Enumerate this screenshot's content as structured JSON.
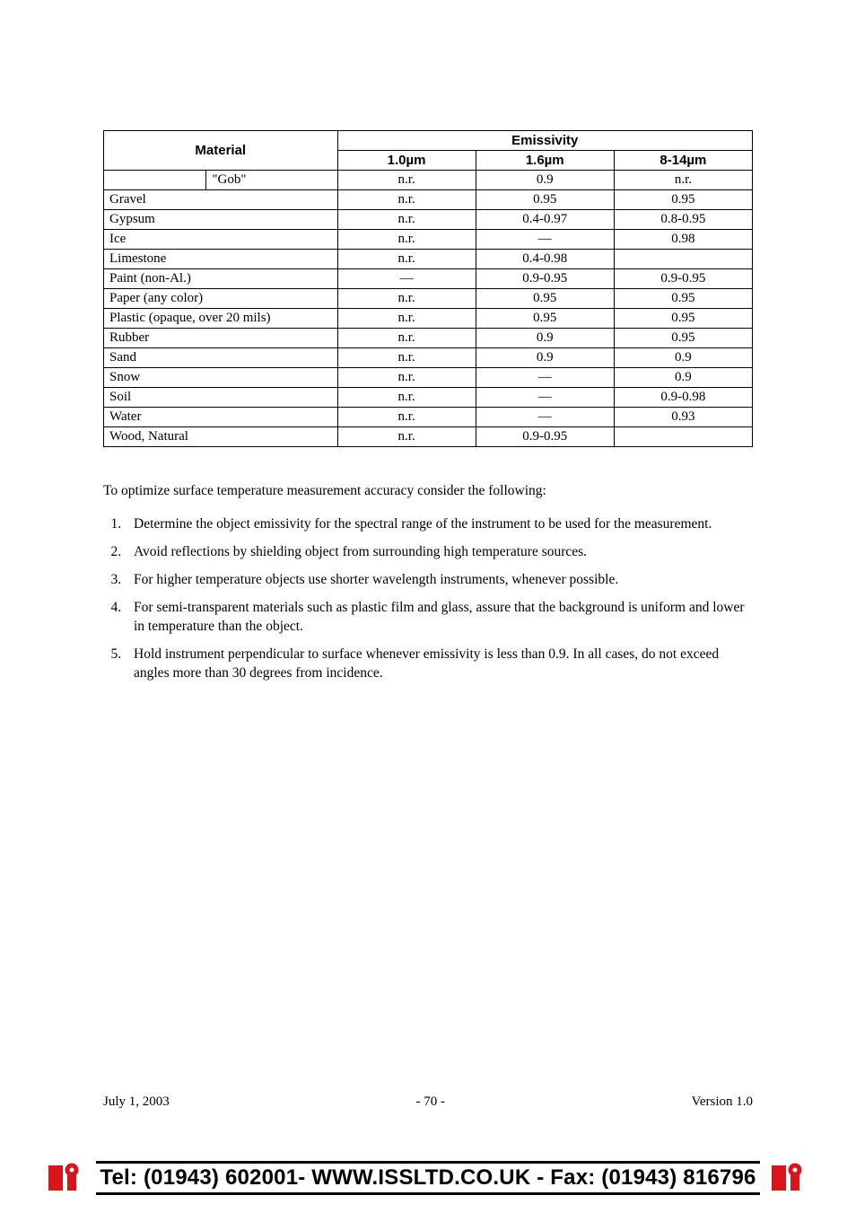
{
  "table": {
    "header": {
      "material": "Material",
      "emissivity": "Emissivity",
      "cols": [
        "1.0µm",
        "1.6µm",
        "8-14µm"
      ]
    },
    "rows": [
      {
        "material": "\"Gob\"",
        "indent": true,
        "v": [
          "n.r.",
          "0.9",
          "n.r."
        ]
      },
      {
        "material": "Gravel",
        "indent": false,
        "v": [
          "n.r.",
          "0.95",
          "0.95"
        ]
      },
      {
        "material": "Gypsum",
        "indent": false,
        "v": [
          "n.r.",
          "0.4-0.97",
          "0.8-0.95"
        ]
      },
      {
        "material": "Ice",
        "indent": false,
        "v": [
          "n.r.",
          "—",
          "0.98"
        ]
      },
      {
        "material": "Limestone",
        "indent": false,
        "v": [
          "n.r.",
          "0.4-0.98",
          ""
        ]
      },
      {
        "material": "Paint (non-Al.)",
        "indent": false,
        "v": [
          "—",
          "0.9-0.95",
          "0.9-0.95"
        ]
      },
      {
        "material": "Paper (any color)",
        "indent": false,
        "v": [
          "n.r.",
          "0.95",
          "0.95"
        ]
      },
      {
        "material": "Plastic (opaque, over 20 mils)",
        "indent": false,
        "v": [
          "n.r.",
          "0.95",
          "0.95"
        ]
      },
      {
        "material": "Rubber",
        "indent": false,
        "v": [
          "n.r.",
          "0.9",
          "0.95"
        ]
      },
      {
        "material": "Sand",
        "indent": false,
        "v": [
          "n.r.",
          "0.9",
          "0.9"
        ]
      },
      {
        "material": "Snow",
        "indent": false,
        "v": [
          "n.r.",
          "—",
          "0.9"
        ]
      },
      {
        "material": "Soil",
        "indent": false,
        "v": [
          "n.r.",
          "—",
          "0.9-0.98"
        ]
      },
      {
        "material": "Water",
        "indent": false,
        "v": [
          "n.r.",
          "—",
          "0.93"
        ]
      },
      {
        "material": "Wood, Natural",
        "indent": false,
        "v": [
          "n.r.",
          "0.9-0.95",
          ""
        ]
      }
    ]
  },
  "intro": "To optimize surface temperature measurement accuracy consider the following:",
  "tips": [
    "Determine the object emissivity for the spectral range of the instrument to be used for the measurement.",
    "Avoid reflections by shielding object from surrounding high temperature sources.",
    "For higher temperature objects use shorter wavelength instruments, whenever possible.",
    "For semi-transparent materials such as plastic film and glass, assure that the background is uniform and lower in temperature than the object.",
    "Hold instrument perpendicular to surface whenever emissivity is less than 0.9. In all cases, do not exceed angles more than 30 degrees from incidence."
  ],
  "footer": {
    "date": "July 1, 2003",
    "page": "- 70 -",
    "version": "Version 1.0",
    "contact": "Tel: (01943) 602001- WWW.ISSLTD.CO.UK - Fax: (01943) 816796"
  },
  "colors": {
    "logo_red": "#d7151a"
  }
}
